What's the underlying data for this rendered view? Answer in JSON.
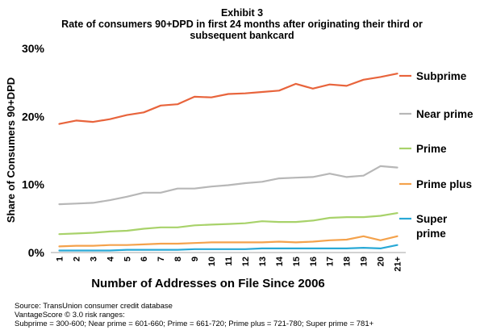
{
  "exhibit": "Exhibit 3",
  "title_line1": "Rate of consumers 90+DPD in first 24 months after originating their third or",
  "title_line2": "subsequent bankcard",
  "notes": {
    "source": "Source: TransUnion consumer credit database",
    "score": "VantageScore © 3.0 risk ranges:",
    "ranges": "Subprime = 300-600; Near prime = 601-660; Prime = 661-720; Prime plus = 721-780; Super prime = 781+"
  },
  "chart_data": {
    "type": "line",
    "title": "Rate of consumers 90+DPD in first 24 months after originating their third or subsequent bankcard",
    "xlabel": "Number of Addresses on File Since 2006",
    "ylabel": "Share of Consumers 90+DPD",
    "categories": [
      "1",
      "2",
      "3",
      "4",
      "5",
      "6",
      "7",
      "8",
      "9",
      "10",
      "11",
      "12",
      "13",
      "14",
      "15",
      "16",
      "17",
      "18",
      "19",
      "20",
      "21+"
    ],
    "yticks": [
      "0%",
      "10%",
      "20%",
      "30%"
    ],
    "ylim": [
      0,
      30
    ],
    "grid": false,
    "legend": "right",
    "series": [
      {
        "name": "Subprime",
        "color": "#e8643c",
        "values": [
          18.9,
          19.4,
          19.2,
          19.6,
          20.2,
          20.6,
          21.6,
          21.8,
          22.9,
          22.8,
          23.3,
          23.4,
          23.6,
          23.8,
          24.8,
          24.1,
          24.7,
          24.5,
          25.4,
          25.8,
          26.3
        ]
      },
      {
        "name": "Near prime",
        "color": "#b7b7b7",
        "values": [
          7.1,
          7.2,
          7.3,
          7.7,
          8.2,
          8.8,
          8.8,
          9.4,
          9.4,
          9.7,
          9.9,
          10.2,
          10.4,
          10.9,
          11.0,
          11.1,
          11.6,
          11.1,
          11.3,
          12.7,
          12.5
        ]
      },
      {
        "name": "Prime",
        "color": "#a8d26a",
        "values": [
          2.7,
          2.8,
          2.9,
          3.1,
          3.2,
          3.5,
          3.7,
          3.7,
          4.0,
          4.1,
          4.2,
          4.3,
          4.6,
          4.5,
          4.5,
          4.7,
          5.1,
          5.2,
          5.2,
          5.4,
          5.8
        ]
      },
      {
        "name": "Prime plus",
        "color": "#f4a24c",
        "values": [
          0.9,
          1.0,
          1.0,
          1.1,
          1.1,
          1.2,
          1.3,
          1.3,
          1.4,
          1.5,
          1.5,
          1.5,
          1.5,
          1.6,
          1.5,
          1.6,
          1.8,
          1.9,
          2.4,
          1.8,
          2.4
        ]
      },
      {
        "name": "Super prime",
        "color": "#29a9d6",
        "values": [
          0.3,
          0.3,
          0.3,
          0.3,
          0.4,
          0.4,
          0.4,
          0.4,
          0.5,
          0.5,
          0.5,
          0.5,
          0.6,
          0.6,
          0.6,
          0.6,
          0.6,
          0.6,
          0.7,
          0.6,
          1.1
        ]
      }
    ]
  }
}
